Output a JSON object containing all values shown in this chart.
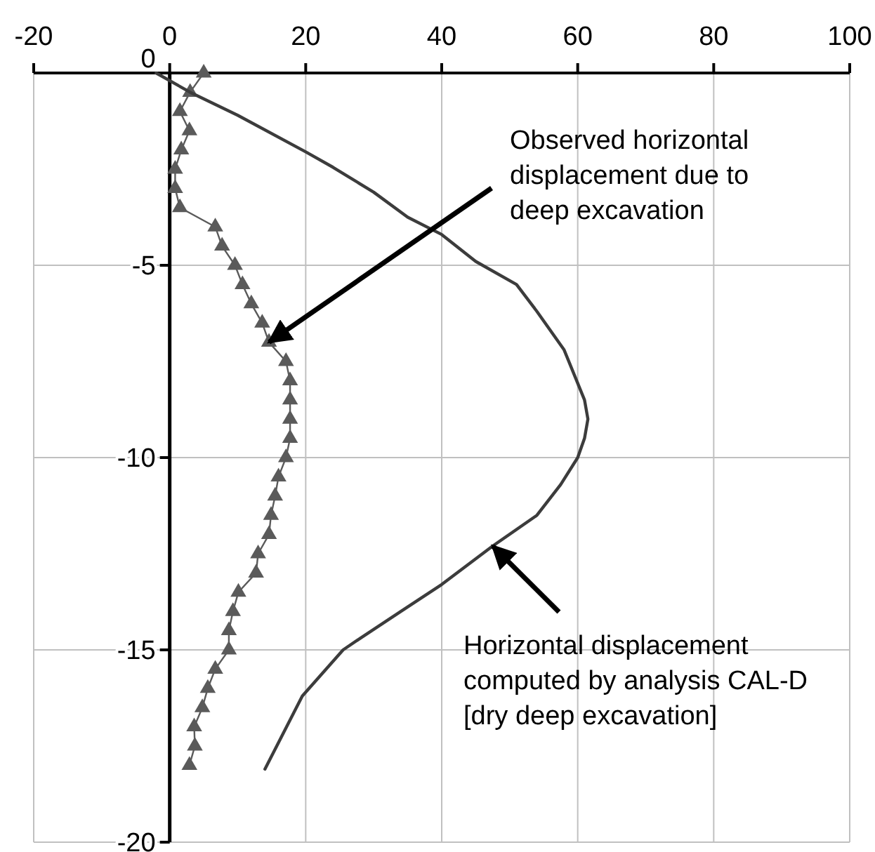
{
  "chart_data": {
    "type": "line",
    "xlim": [
      -20,
      100
    ],
    "xticks": [
      -20,
      0,
      20,
      40,
      60,
      80,
      100
    ],
    "ylim": [
      -20,
      0
    ],
    "yticks": [
      -20,
      -15,
      -10,
      -5,
      0
    ],
    "grid": true,
    "series": [
      {
        "color": "#5a5a5a",
        "marker": "triangle",
        "x": [
          5,
          3,
          1.5,
          2.9,
          1.7,
          0.8,
          0.8,
          1.5,
          6.7,
          7.7,
          9.6,
          10.7,
          12,
          13.6,
          14.6,
          17.1,
          17.7,
          17.7,
          17.7,
          17.7,
          17.1,
          16,
          15.5,
          14.9,
          14.6,
          13,
          12.7,
          10.1,
          9.3,
          8.7,
          8.7,
          6.7,
          5.6,
          4.8,
          3.6,
          3.7,
          2.9
        ],
        "values": [
          0,
          -0.5,
          -1,
          -1.5,
          -2,
          -2.5,
          -3,
          -3.5,
          -4,
          -4.5,
          -5,
          -5.5,
          -6,
          -6.5,
          -7,
          -7.5,
          -8,
          -8.5,
          -9,
          -9.5,
          -10,
          -10.5,
          -11,
          -11.5,
          -12,
          -12.5,
          -13,
          -13.5,
          -14,
          -14.5,
          -15,
          -15.5,
          -16,
          -16.5,
          -17,
          -17.5,
          -18
        ]
      },
      {
        "color": "#3c3c3c",
        "marker": "none",
        "x": [
          -2,
          3,
          10,
          20,
          24,
          30,
          35,
          40,
          45,
          51,
          54,
          58,
          61,
          61.5,
          61,
          60,
          57.5,
          54,
          47.5,
          40,
          34,
          28,
          25.5,
          19.5,
          14
        ],
        "values": [
          0,
          -0.5,
          -1.1,
          -2.05,
          -2.45,
          -3.1,
          -3.75,
          -4.2,
          -4.9,
          -5.5,
          -6.2,
          -7.2,
          -8.5,
          -9,
          -9.5,
          -10,
          -10.7,
          -11.5,
          -12.3,
          -13.3,
          -14,
          -14.7,
          -15,
          -16.2,
          -18.1
        ]
      }
    ],
    "annotations": [
      {
        "text": "Observed horizontal displacement due to deep excavation",
        "x": 14.6,
        "y": -7
      },
      {
        "text": "Horizontal displacement computed by analysis CAL-D [dry deep excavation]",
        "x": 47.5,
        "y": -12.3
      }
    ]
  }
}
